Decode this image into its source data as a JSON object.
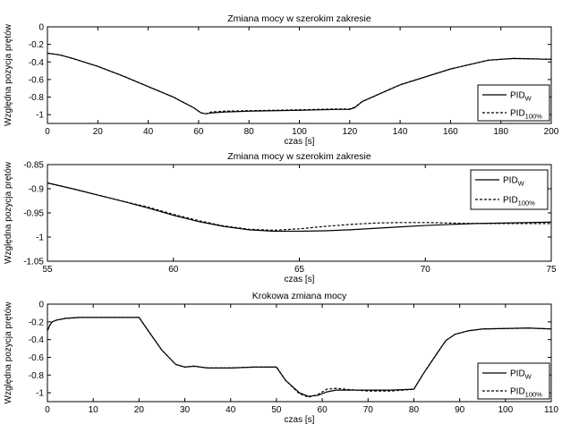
{
  "chart_data": [
    {
      "type": "line",
      "title": "Zmiana mocy w szerokim zakresie",
      "xlabel": "czas [s]",
      "ylabel": "Względna pozycja prętów",
      "xlim": [
        0,
        200
      ],
      "ylim": [
        -1.1,
        0
      ],
      "xticks": [
        0,
        20,
        40,
        60,
        80,
        100,
        120,
        140,
        160,
        180,
        200
      ],
      "xtick_labels": [
        "0",
        "20",
        "40",
        "60",
        "80",
        "100",
        "120",
        "140",
        "160",
        "180",
        "200"
      ],
      "yticks": [
        -1,
        -0.8,
        -0.6,
        -0.4,
        -0.2,
        0
      ],
      "ytick_labels": [
        "-1",
        "-0.8",
        "-0.6",
        "-0.4",
        "-0.2",
        "0"
      ],
      "grid": false,
      "legend_position": "bottom-right",
      "series": [
        {
          "name": "PID",
          "name_sub": "W",
          "style": "solid",
          "x": [
            0,
            5,
            10,
            20,
            30,
            40,
            50,
            58,
            61,
            63,
            65,
            70,
            80,
            100,
            115,
            120,
            122,
            125,
            140,
            160,
            175,
            180,
            185,
            200
          ],
          "y": [
            -0.3,
            -0.32,
            -0.36,
            -0.45,
            -0.56,
            -0.68,
            -0.8,
            -0.92,
            -0.98,
            -0.99,
            -0.98,
            -0.97,
            -0.96,
            -0.95,
            -0.94,
            -0.94,
            -0.92,
            -0.85,
            -0.66,
            -0.48,
            -0.38,
            -0.37,
            -0.36,
            -0.37
          ]
        },
        {
          "name": "PID",
          "name_sub": "100%",
          "style": "dashed",
          "x": [
            0,
            5,
            10,
            20,
            30,
            40,
            50,
            58,
            61,
            63,
            65,
            70,
            80,
            100,
            115,
            120,
            122,
            125,
            140,
            160,
            175,
            180,
            185,
            200
          ],
          "y": [
            -0.3,
            -0.32,
            -0.36,
            -0.45,
            -0.56,
            -0.68,
            -0.8,
            -0.92,
            -0.98,
            -0.99,
            -0.97,
            -0.96,
            -0.955,
            -0.945,
            -0.935,
            -0.935,
            -0.915,
            -0.85,
            -0.66,
            -0.48,
            -0.38,
            -0.37,
            -0.36,
            -0.37
          ]
        }
      ]
    },
    {
      "type": "line",
      "title": "Zmiana mocy w szerokim zakresie",
      "xlabel": "czas [s]",
      "ylabel": "Względna pozycja prętów",
      "xlim": [
        55,
        75
      ],
      "ylim": [
        -1.05,
        -0.85
      ],
      "xticks": [
        55,
        60,
        65,
        70,
        75
      ],
      "xtick_labels": [
        "55",
        "60",
        "65",
        "70",
        "75"
      ],
      "yticks": [
        -1.05,
        -1,
        -0.95,
        -0.9,
        -0.85
      ],
      "ytick_labels": [
        "-1.05",
        "-1",
        "-0.95",
        "-0.9",
        "-0.85"
      ],
      "grid": false,
      "legend_position": "top-right",
      "series": [
        {
          "name": "PID",
          "name_sub": "W",
          "style": "solid",
          "x": [
            55,
            56,
            57,
            58,
            59,
            60,
            61,
            62,
            63,
            64,
            65,
            66,
            67,
            68,
            69,
            70,
            71,
            72,
            73,
            74,
            75
          ],
          "y": [
            -0.888,
            -0.9,
            -0.913,
            -0.926,
            -0.94,
            -0.955,
            -0.968,
            -0.978,
            -0.985,
            -0.988,
            -0.988,
            -0.987,
            -0.985,
            -0.982,
            -0.979,
            -0.976,
            -0.974,
            -0.972,
            -0.971,
            -0.97,
            -0.969
          ]
        },
        {
          "name": "PID",
          "name_sub": "100%",
          "style": "dashed",
          "x": [
            55,
            56,
            57,
            58,
            59,
            60,
            61,
            62,
            63,
            64,
            65,
            66,
            67,
            68,
            69,
            70,
            71,
            72,
            73,
            74,
            75
          ],
          "y": [
            -0.888,
            -0.9,
            -0.913,
            -0.926,
            -0.938,
            -0.953,
            -0.966,
            -0.977,
            -0.984,
            -0.986,
            -0.983,
            -0.978,
            -0.974,
            -0.971,
            -0.97,
            -0.97,
            -0.971,
            -0.972,
            -0.972,
            -0.972,
            -0.972
          ]
        }
      ]
    },
    {
      "type": "line",
      "title": "Krokowa zmiana mocy",
      "xlabel": "czas [s]",
      "ylabel": "Względna pozycja prętów",
      "xlim": [
        0,
        110
      ],
      "ylim": [
        -1.1,
        0
      ],
      "xticks": [
        0,
        10,
        20,
        30,
        40,
        50,
        60,
        70,
        80,
        90,
        100,
        110
      ],
      "xtick_labels": [
        "0",
        "10",
        "20",
        "30",
        "40",
        "50",
        "60",
        "70",
        "80",
        "90",
        "100",
        "110"
      ],
      "yticks": [
        -1,
        -0.8,
        -0.6,
        -0.4,
        -0.2,
        0
      ],
      "ytick_labels": [
        "-1",
        "-0.8",
        "-0.6",
        "-0.4",
        "-0.2",
        "0"
      ],
      "grid": false,
      "legend_position": "bottom-right",
      "series": [
        {
          "name": "PID",
          "name_sub": "W",
          "style": "solid",
          "x": [
            0,
            0.5,
            1,
            2,
            4,
            7,
            10,
            15,
            20,
            22,
            25,
            28,
            30,
            32,
            35,
            40,
            45,
            50,
            52,
            55,
            57,
            59,
            61,
            63,
            65,
            70,
            75,
            80,
            82,
            85,
            87,
            89,
            92,
            95,
            100,
            105,
            110
          ],
          "y": [
            -0.3,
            -0.24,
            -0.2,
            -0.18,
            -0.16,
            -0.15,
            -0.15,
            -0.15,
            -0.15,
            -0.3,
            -0.52,
            -0.68,
            -0.71,
            -0.7,
            -0.72,
            -0.72,
            -0.71,
            -0.71,
            -0.86,
            -1.0,
            -1.04,
            -1.03,
            -0.99,
            -0.97,
            -0.97,
            -0.97,
            -0.97,
            -0.96,
            -0.79,
            -0.56,
            -0.41,
            -0.34,
            -0.3,
            -0.28,
            -0.275,
            -0.27,
            -0.28
          ]
        },
        {
          "name": "PID",
          "name_sub": "100%",
          "style": "dashed",
          "x": [
            0,
            0.5,
            1,
            2,
            4,
            7,
            10,
            15,
            20,
            22,
            25,
            28,
            30,
            32,
            35,
            40,
            45,
            50,
            52,
            55,
            57,
            59,
            61,
            63,
            65,
            70,
            75,
            80,
            82,
            85,
            87,
            89,
            92,
            95,
            100,
            105,
            110
          ],
          "y": [
            -0.3,
            -0.24,
            -0.2,
            -0.18,
            -0.16,
            -0.15,
            -0.15,
            -0.15,
            -0.15,
            -0.3,
            -0.52,
            -0.68,
            -0.71,
            -0.7,
            -0.72,
            -0.72,
            -0.71,
            -0.71,
            -0.86,
            -1.01,
            -1.05,
            -1.02,
            -0.96,
            -0.95,
            -0.96,
            -0.98,
            -0.98,
            -0.96,
            -0.79,
            -0.56,
            -0.41,
            -0.34,
            -0.3,
            -0.28,
            -0.275,
            -0.27,
            -0.28
          ]
        }
      ]
    }
  ]
}
